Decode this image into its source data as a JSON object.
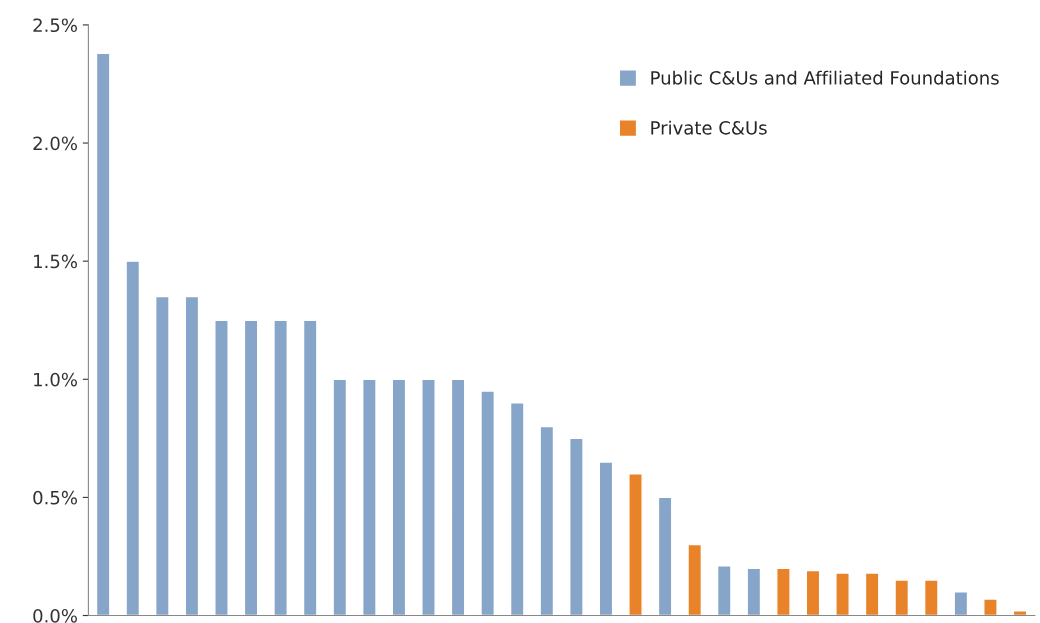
{
  "chart_data": {
    "type": "bar",
    "categories": [
      null,
      null,
      null,
      null,
      null,
      null,
      null,
      null,
      null,
      null,
      null,
      null,
      null,
      null,
      null,
      null,
      null,
      null,
      null,
      null,
      null,
      null,
      null,
      null,
      null,
      null,
      null,
      null,
      null,
      null,
      null,
      null
    ],
    "series": [
      {
        "name": "Public C&Us and Affiliated Foundations",
        "color": "#87a5c8",
        "values": [
          2.38,
          1.5,
          1.35,
          1.35,
          1.25,
          1.25,
          1.25,
          1.25,
          1.0,
          1.0,
          1.0,
          1.0,
          1.0,
          0.95,
          0.9,
          0.8,
          0.75,
          0.65,
          null,
          0.5,
          null,
          0.21,
          0.2,
          null,
          null,
          null,
          null,
          null,
          null,
          0.1,
          null,
          null
        ]
      },
      {
        "name": "Private C&Us",
        "color": "#e8832a",
        "values": [
          null,
          null,
          null,
          null,
          null,
          null,
          null,
          null,
          null,
          null,
          null,
          null,
          null,
          null,
          null,
          null,
          null,
          null,
          0.6,
          null,
          0.3,
          null,
          null,
          0.2,
          0.19,
          0.18,
          0.18,
          0.15,
          0.15,
          null,
          0.07,
          0.02
        ]
      }
    ],
    "ylim": [
      0,
      2.5
    ],
    "yticks": [
      {
        "value": 0,
        "label": "0.0%"
      },
      {
        "value": 0.5,
        "label": "0.5%"
      },
      {
        "value": 1.0,
        "label": "1.0%"
      },
      {
        "value": 1.5,
        "label": "1.5%"
      },
      {
        "value": 2.0,
        "label": "2.0%"
      },
      {
        "value": 2.5,
        "label": "2.5%"
      }
    ],
    "legend": "top right",
    "grid": false
  }
}
